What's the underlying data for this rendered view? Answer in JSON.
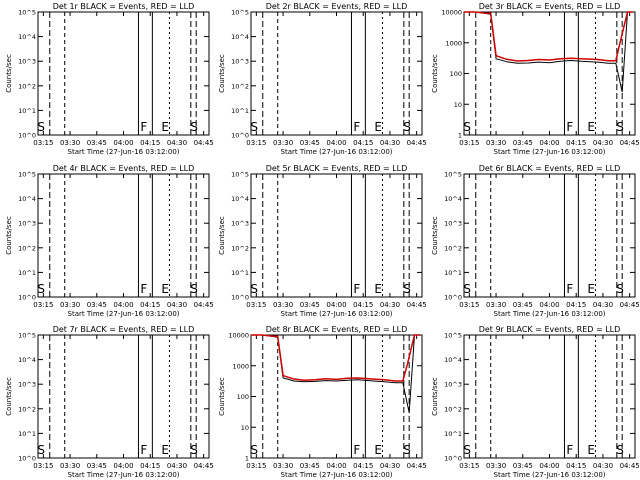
{
  "chart_data": [
    {
      "type": "line",
      "title": "Det 1r BLACK = Events, RED = LLD",
      "ylabel": "Counts/sec",
      "xlabel": "Start Time (27-Jun-16 03:12:00)",
      "y_scale": "log",
      "ylim": [
        1,
        10000
      ],
      "y_tick_labels": [
        "10^0",
        "10^1",
        "10^2",
        "10^3",
        "10^4",
        "10^5"
      ],
      "x_tick_labels": [
        "03:15",
        "03:30",
        "03:45",
        "04:00",
        "04:15",
        "04:30",
        "04:45"
      ],
      "markers": [
        "S",
        "F",
        "E",
        "S"
      ],
      "has_data": false,
      "series": []
    },
    {
      "type": "line",
      "title": "Det 2r BLACK = Events, RED = LLD",
      "ylabel": "Counts/sec",
      "xlabel": "Start Time (27-Jun-16 03:12:00)",
      "y_scale": "log",
      "ylim": [
        1,
        10000
      ],
      "y_tick_labels": [
        "10^0",
        "10^1",
        "10^2",
        "10^3",
        "10^4",
        "10^5"
      ],
      "x_tick_labels": [
        "03:15",
        "03:30",
        "03:45",
        "04:00",
        "04:15",
        "04:30",
        "04:45"
      ],
      "markers": [
        "S",
        "F",
        "E",
        "S"
      ],
      "has_data": false,
      "series": []
    },
    {
      "type": "line",
      "title": "Det 3r BLACK = Events, RED = LLD",
      "ylabel": "Counts/sec",
      "xlabel": "Start Time (27-Jun-16 03:12:00)",
      "y_scale": "log",
      "ylim": [
        1,
        10000
      ],
      "y_tick_labels": [
        "1",
        "10",
        "100",
        "1000",
        "10000"
      ],
      "x_tick_labels": [
        "03:15",
        "03:30",
        "03:45",
        "04:00",
        "04:15",
        "04:30",
        "04:45"
      ],
      "markers": [
        "S",
        "F",
        "E",
        "S"
      ],
      "has_data": true,
      "series": [
        {
          "color": "#000000",
          "x": [
            3.2,
            3.3,
            3.4,
            3.45,
            3.5,
            3.55,
            3.6,
            3.7,
            3.8,
            3.9,
            4.0,
            4.1,
            4.2,
            4.3,
            4.45,
            4.55,
            4.62,
            4.68,
            4.73,
            4.78
          ],
          "y": [
            10000,
            10000,
            9000,
            8500,
            300,
            270,
            240,
            215,
            220,
            235,
            225,
            250,
            265,
            250,
            235,
            215,
            215,
            25,
            10000,
            10000
          ]
        },
        {
          "color": "#cc0000",
          "x": [
            3.2,
            3.3,
            3.4,
            3.45,
            3.5,
            3.55,
            3.6,
            3.7,
            3.8,
            3.9,
            4.0,
            4.1,
            4.2,
            4.3,
            4.45,
            4.55,
            4.62,
            4.66,
            4.73,
            4.78
          ],
          "y": [
            10000,
            10000,
            9200,
            9000,
            380,
            330,
            290,
            255,
            265,
            285,
            275,
            300,
            315,
            300,
            285,
            260,
            260,
            1000,
            10000,
            10000
          ]
        }
      ]
    },
    {
      "type": "line",
      "title": "Det 4r BLACK = Events, RED = LLD",
      "ylabel": "Counts/sec",
      "xlabel": "Start Time (27-Jun-16 03:12:00)",
      "y_scale": "log",
      "ylim": [
        1,
        10000
      ],
      "y_tick_labels": [
        "10^0",
        "10^1",
        "10^2",
        "10^3",
        "10^4",
        "10^5"
      ],
      "x_tick_labels": [
        "03:15",
        "03:30",
        "03:45",
        "04:00",
        "04:15",
        "04:30",
        "04:45"
      ],
      "markers": [
        "S",
        "F",
        "E",
        "S"
      ],
      "has_data": false,
      "series": []
    },
    {
      "type": "line",
      "title": "Det 5r BLACK = Events, RED = LLD",
      "ylabel": "Counts/sec",
      "xlabel": "Start Time (27-Jun-16 03:12:00)",
      "y_scale": "log",
      "ylim": [
        1,
        10000
      ],
      "y_tick_labels": [
        "10^0",
        "10^1",
        "10^2",
        "10^3",
        "10^4",
        "10^5"
      ],
      "x_tick_labels": [
        "03:15",
        "03:30",
        "03:45",
        "04:00",
        "04:15",
        "04:30",
        "04:45"
      ],
      "markers": [
        "S",
        "F",
        "E",
        "S"
      ],
      "has_data": false,
      "series": []
    },
    {
      "type": "line",
      "title": "Det 6r BLACK = Events, RED = LLD",
      "ylabel": "Counts/sec",
      "xlabel": "Start Time (27-Jun-16 03:12:00)",
      "y_scale": "log",
      "ylim": [
        1,
        10000
      ],
      "y_tick_labels": [
        "10^0",
        "10^1",
        "10^2",
        "10^3",
        "10^4",
        "10^5"
      ],
      "x_tick_labels": [
        "03:15",
        "03:30",
        "03:45",
        "04:00",
        "04:15",
        "04:30",
        "04:45"
      ],
      "markers": [
        "S",
        "F",
        "E",
        "S"
      ],
      "has_data": false,
      "series": []
    },
    {
      "type": "line",
      "title": "Det 7r BLACK = Events, RED = LLD",
      "ylabel": "Counts/sec",
      "xlabel": "Start Time (27-Jun-16 03:12:00)",
      "y_scale": "log",
      "ylim": [
        1,
        10000
      ],
      "y_tick_labels": [
        "10^0",
        "10^1",
        "10^2",
        "10^3",
        "10^4",
        "10^5"
      ],
      "x_tick_labels": [
        "03:15",
        "03:30",
        "03:45",
        "04:00",
        "04:15",
        "04:30",
        "04:45"
      ],
      "markers": [
        "S",
        "F",
        "E",
        "S"
      ],
      "has_data": false,
      "series": []
    },
    {
      "type": "line",
      "title": "Det 8r BLACK = Events, RED = LLD",
      "ylabel": "Counts/sec",
      "xlabel": "Start Time (27-Jun-16 03:12:00)",
      "y_scale": "log",
      "ylim": [
        1,
        10000
      ],
      "y_tick_labels": [
        "1",
        "10",
        "100",
        "1000",
        "10000"
      ],
      "x_tick_labels": [
        "03:15",
        "03:30",
        "03:45",
        "04:00",
        "04:15",
        "04:30",
        "04:45"
      ],
      "markers": [
        "S",
        "F",
        "E",
        "S"
      ],
      "has_data": true,
      "series": [
        {
          "color": "#000000",
          "x": [
            3.2,
            3.3,
            3.4,
            3.45,
            3.5,
            3.55,
            3.6,
            3.7,
            3.8,
            3.9,
            4.0,
            4.1,
            4.2,
            4.3,
            4.45,
            4.55,
            4.62,
            4.68,
            4.73,
            4.78
          ],
          "y": [
            10000,
            10000,
            9000,
            8500,
            400,
            360,
            320,
            300,
            310,
            330,
            320,
            340,
            350,
            330,
            300,
            280,
            280,
            30,
            10000,
            10000
          ]
        },
        {
          "color": "#cc0000",
          "x": [
            3.2,
            3.3,
            3.4,
            3.45,
            3.5,
            3.55,
            3.6,
            3.7,
            3.8,
            3.9,
            4.0,
            4.1,
            4.2,
            4.3,
            4.45,
            4.55,
            4.62,
            4.66,
            4.73,
            4.78
          ],
          "y": [
            10000,
            10000,
            9200,
            9000,
            480,
            420,
            370,
            340,
            350,
            380,
            360,
            390,
            400,
            380,
            350,
            320,
            320,
            1000,
            10000,
            10000
          ]
        }
      ]
    },
    {
      "type": "line",
      "title": "Det 9r BLACK = Events, RED = LLD",
      "ylabel": "Counts/sec",
      "xlabel": "Start Time (27-Jun-16 03:12:00)",
      "y_scale": "log",
      "ylim": [
        1,
        10000
      ],
      "y_tick_labels": [
        "10^0",
        "10^1",
        "10^2",
        "10^3",
        "10^4",
        "10^5"
      ],
      "x_tick_labels": [
        "03:15",
        "03:30",
        "03:45",
        "04:00",
        "04:15",
        "04:30",
        "04:45"
      ],
      "markers": [
        "S",
        "F",
        "E",
        "S"
      ],
      "has_data": false,
      "series": []
    }
  ]
}
